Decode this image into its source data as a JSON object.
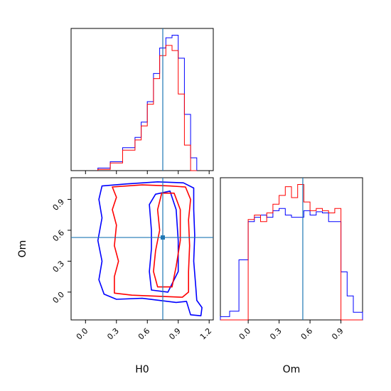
{
  "chart_data": {
    "type": "corner",
    "parameters": [
      "H0",
      "Om"
    ],
    "colors": {
      "series_a": "#0000ff",
      "series_b": "#ff0000",
      "truth": "#1f77b4"
    },
    "truth": {
      "H0": 0.75,
      "Om": 0.53
    },
    "ranges": {
      "H0": [
        -0.14,
        1.24
      ],
      "Om": [
        -0.27,
        1.11
      ]
    },
    "ticks": {
      "H0": [
        0.0,
        0.3,
        0.6,
        0.9,
        1.2
      ],
      "H0_labels": [
        "0.0",
        "0.3",
        "0.6",
        "0.9",
        "1.2"
      ],
      "Om": [
        0.0,
        0.3,
        0.6,
        0.9
      ],
      "Om_labels": [
        "0.0",
        "0.3",
        "0.6",
        "0.9"
      ]
    },
    "panels": [
      {
        "position": "top-left",
        "type": "histogram",
        "variable": "H0",
        "bin_edges": [
          0.12,
          0.24,
          0.36,
          0.48,
          0.54,
          0.6,
          0.66,
          0.72,
          0.78,
          0.84,
          0.9,
          0.96,
          1.02,
          1.08
        ],
        "series": [
          {
            "color": "#0000ff",
            "values": [
              2,
              7,
              18,
              26,
              38,
              54,
              76,
              96,
              104,
              106,
              88,
              44,
              10
            ]
          },
          {
            "color": "#ff0000",
            "values": [
              1,
              6,
              16,
              24,
              35,
              52,
              72,
              90,
              98,
              94,
              60,
              20,
              0
            ]
          }
        ]
      },
      {
        "position": "bottom-left",
        "type": "contour",
        "x": "H0",
        "y": "Om",
        "series": [
          {
            "color": "#0000ff",
            "contours": [
              [
                [
                  0.16,
                  1.03
                ],
                [
                  0.4,
                  1.05
                ],
                [
                  0.7,
                  1.07
                ],
                [
                  0.95,
                  1.06
                ],
                [
                  1.05,
                  1.01
                ],
                [
                  1.05,
                  0.8
                ],
                [
                  1.06,
                  0.55
                ],
                [
                  1.05,
                  0.3
                ],
                [
                  1.07,
                  0.05
                ],
                [
                  1.08,
                  -0.08
                ],
                [
                  1.13,
                  -0.15
                ],
                [
                  1.12,
                  -0.23
                ],
                [
                  1.02,
                  -0.22
                ],
                [
                  0.98,
                  -0.09
                ],
                [
                  0.88,
                  -0.1
                ],
                [
                  0.55,
                  -0.06
                ],
                [
                  0.3,
                  -0.07
                ],
                [
                  0.18,
                  -0.02
                ],
                [
                  0.13,
                  0.12
                ],
                [
                  0.16,
                  0.3
                ],
                [
                  0.12,
                  0.5
                ],
                [
                  0.16,
                  0.72
                ],
                [
                  0.13,
                  0.9
                ],
                [
                  0.16,
                  1.03
                ]
              ],
              [
                [
                  0.64,
                  0.42
                ],
                [
                  0.62,
                  0.2
                ],
                [
                  0.64,
                  0.02
                ],
                [
                  0.8,
                  0.0
                ],
                [
                  0.9,
                  0.2
                ],
                [
                  0.9,
                  0.5
                ],
                [
                  0.88,
                  0.8
                ],
                [
                  0.82,
                  0.98
                ],
                [
                  0.68,
                  0.95
                ],
                [
                  0.62,
                  0.85
                ],
                [
                  0.64,
                  0.6
                ],
                [
                  0.64,
                  0.42
                ]
              ]
            ]
          },
          {
            "color": "#ff0000",
            "contours": [
              [
                [
                  0.26,
                  1.02
                ],
                [
                  0.55,
                  1.04
                ],
                [
                  0.82,
                  1.03
                ],
                [
                  0.97,
                  1.02
                ],
                [
                  1.02,
                  0.9
                ],
                [
                  1.0,
                  0.7
                ],
                [
                  1.01,
                  0.45
                ],
                [
                  1.0,
                  0.2
                ],
                [
                  1.0,
                  0.0
                ],
                [
                  0.94,
                  -0.05
                ],
                [
                  0.7,
                  -0.04
                ],
                [
                  0.45,
                  -0.03
                ],
                [
                  0.28,
                  -0.01
                ],
                [
                  0.28,
                  0.15
                ],
                [
                  0.32,
                  0.3
                ],
                [
                  0.28,
                  0.45
                ],
                [
                  0.3,
                  0.65
                ],
                [
                  0.26,
                  0.8
                ],
                [
                  0.3,
                  0.92
                ],
                [
                  0.26,
                  1.02
                ]
              ],
              [
                [
                  0.68,
                  0.4
                ],
                [
                  0.66,
                  0.2
                ],
                [
                  0.7,
                  0.05
                ],
                [
                  0.84,
                  0.05
                ],
                [
                  0.88,
                  0.25
                ],
                [
                  0.92,
                  0.5
                ],
                [
                  0.92,
                  0.8
                ],
                [
                  0.86,
                  0.96
                ],
                [
                  0.74,
                  0.96
                ],
                [
                  0.7,
                  0.8
                ],
                [
                  0.72,
                  0.6
                ],
                [
                  0.68,
                  0.4
                ]
              ]
            ]
          }
        ]
      },
      {
        "position": "bottom-right",
        "type": "histogram",
        "variable": "Om",
        "bin_edges": [
          -0.27,
          -0.18,
          -0.09,
          0.0,
          0.06,
          0.12,
          0.18,
          0.24,
          0.3,
          0.36,
          0.42,
          0.48,
          0.54,
          0.6,
          0.66,
          0.72,
          0.78,
          0.84,
          0.9,
          0.96,
          1.02,
          1.11
        ],
        "series": [
          {
            "color": "#0000ff",
            "values": [
              3,
              8,
              55,
              90,
              94,
              96,
              94,
              100,
              102,
              96,
              94,
              94,
              100,
              96,
              99,
              98,
              90,
              90,
              44,
              22,
              7
            ]
          },
          {
            "color": "#ff0000",
            "values": [
              0,
              0,
              0,
              92,
              96,
              90,
              98,
              106,
              114,
              122,
              112,
              124,
              108,
              100,
              102,
              100,
              98,
              102,
              0,
              0,
              0
            ]
          }
        ]
      }
    ]
  }
}
